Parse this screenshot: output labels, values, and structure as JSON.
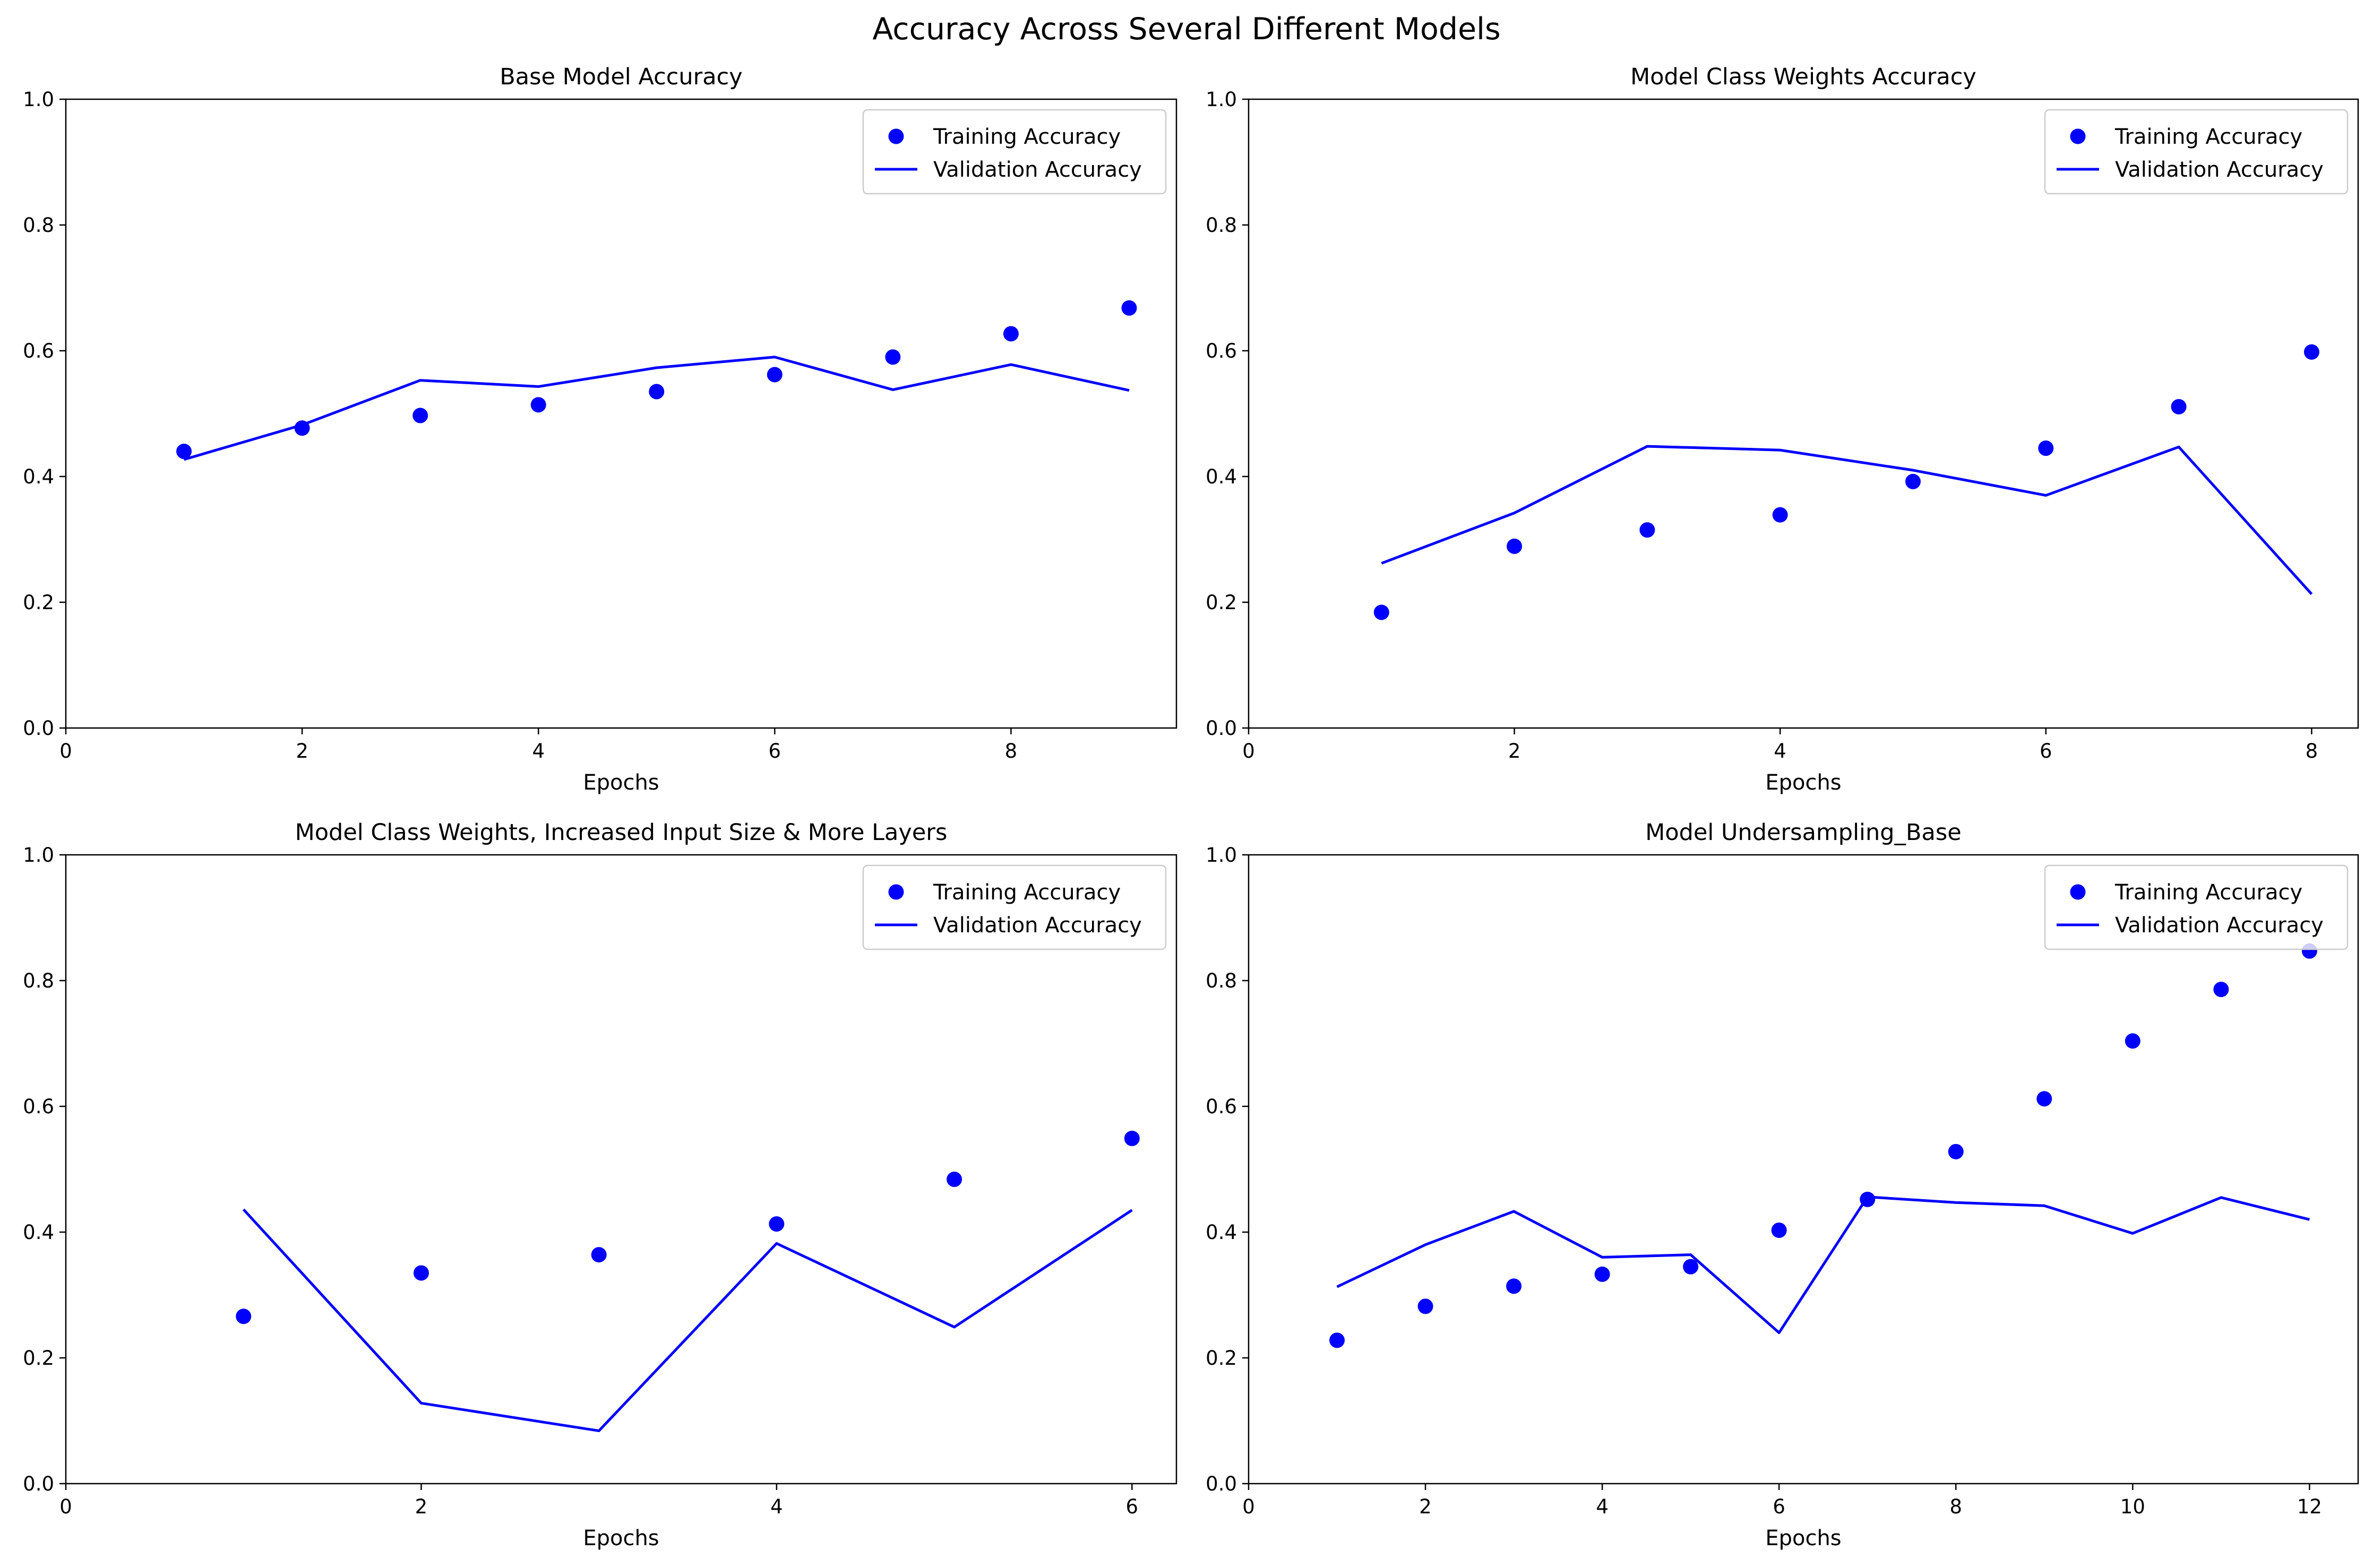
{
  "figure": {
    "suptitle": "Accuracy Across Several Different Models"
  },
  "chart_data": [
    {
      "type": "line",
      "title": "Base Model Accuracy",
      "xlabel": "Epochs",
      "ylabel": "",
      "xlim": [
        0,
        9.4
      ],
      "ylim": [
        0,
        1.0
      ],
      "xticks": [
        0,
        2,
        4,
        6,
        8
      ],
      "yticks": [
        0.0,
        0.2,
        0.4,
        0.6,
        0.8,
        1.0
      ],
      "grid": false,
      "legend_position": "top-right",
      "x": [
        1,
        2,
        3,
        4,
        5,
        6,
        7,
        8,
        9
      ],
      "series": [
        {
          "name": "Training Accuracy",
          "style": "scatter",
          "color": "#0000ff",
          "values": [
            0.44,
            0.477,
            0.497,
            0.514,
            0.535,
            0.562,
            0.59,
            0.627,
            0.668
          ]
        },
        {
          "name": "Validation Accuracy",
          "style": "line",
          "color": "#0000ff",
          "values": [
            0.427,
            0.482,
            0.553,
            0.543,
            0.573,
            0.59,
            0.538,
            0.578,
            0.537
          ]
        }
      ]
    },
    {
      "type": "line",
      "title": "Model Class Weights Accuracy",
      "xlabel": "Epochs",
      "ylabel": "",
      "xlim": [
        0,
        8.35
      ],
      "ylim": [
        0,
        1.0
      ],
      "xticks": [
        0,
        2,
        4,
        6,
        8
      ],
      "yticks": [
        0.0,
        0.2,
        0.4,
        0.6,
        0.8,
        1.0
      ],
      "grid": false,
      "legend_position": "top-right",
      "x": [
        1,
        2,
        3,
        4,
        5,
        6,
        7,
        8
      ],
      "series": [
        {
          "name": "Training Accuracy",
          "style": "scatter",
          "color": "#0000ff",
          "values": [
            0.184,
            0.289,
            0.315,
            0.339,
            0.392,
            0.445,
            0.511,
            0.598
          ]
        },
        {
          "name": "Validation Accuracy",
          "style": "line",
          "color": "#0000ff",
          "values": [
            0.262,
            0.342,
            0.448,
            0.442,
            0.41,
            0.37,
            0.447,
            0.213
          ]
        }
      ]
    },
    {
      "type": "line",
      "title": "Model Class Weights, Increased Input Size & More Layers",
      "xlabel": "Epochs",
      "ylabel": "",
      "xlim": [
        0,
        6.25
      ],
      "ylim": [
        0,
        1.0
      ],
      "xticks": [
        0,
        2,
        4,
        6
      ],
      "yticks": [
        0.0,
        0.2,
        0.4,
        0.6,
        0.8,
        1.0
      ],
      "grid": false,
      "legend_position": "top-right",
      "x": [
        1,
        2,
        3,
        4,
        5,
        6
      ],
      "series": [
        {
          "name": "Training Accuracy",
          "style": "scatter",
          "color": "#0000ff",
          "values": [
            0.266,
            0.335,
            0.364,
            0.413,
            0.484,
            0.549
          ]
        },
        {
          "name": "Validation Accuracy",
          "style": "line",
          "color": "#0000ff",
          "values": [
            0.436,
            0.128,
            0.084,
            0.382,
            0.249,
            0.435
          ]
        }
      ]
    },
    {
      "type": "line",
      "title": "Model Undersampling_Base",
      "xlabel": "Epochs",
      "ylabel": "",
      "xlim": [
        0,
        12.55
      ],
      "ylim": [
        0,
        1.0
      ],
      "xticks": [
        0,
        2,
        4,
        6,
        8,
        10,
        12
      ],
      "yticks": [
        0.0,
        0.2,
        0.4,
        0.6,
        0.8,
        1.0
      ],
      "grid": false,
      "legend_position": "top-right",
      "x": [
        1,
        2,
        3,
        4,
        5,
        6,
        7,
        8,
        9,
        10,
        11,
        12
      ],
      "series": [
        {
          "name": "Training Accuracy",
          "style": "scatter",
          "color": "#0000ff",
          "values": [
            0.228,
            0.282,
            0.314,
            0.333,
            0.345,
            0.403,
            0.452,
            0.528,
            0.612,
            0.704,
            0.786,
            0.847
          ]
        },
        {
          "name": "Validation Accuracy",
          "style": "line",
          "color": "#0000ff",
          "values": [
            0.313,
            0.38,
            0.433,
            0.36,
            0.364,
            0.24,
            0.456,
            0.447,
            0.442,
            0.398,
            0.455,
            0.42
          ]
        }
      ]
    }
  ]
}
